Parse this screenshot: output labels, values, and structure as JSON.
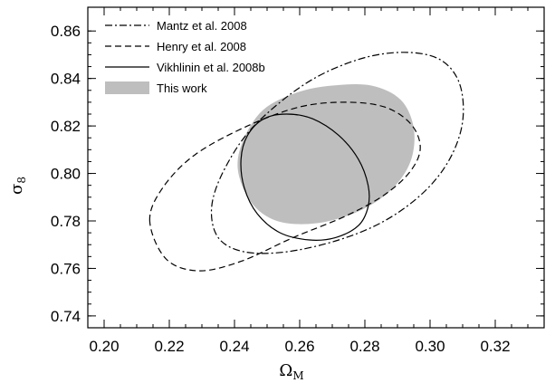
{
  "chart_data": {
    "type": "contour",
    "xlabel": "Ω",
    "xlabel_sub": "M",
    "ylabel": "σ",
    "ylabel_sub": "8",
    "xlim": [
      0.195,
      0.335
    ],
    "ylim": [
      0.735,
      0.87
    ],
    "x_ticks": [
      "0.20",
      "0.22",
      "0.24",
      "0.26",
      "0.28",
      "0.30",
      "0.32"
    ],
    "y_ticks": [
      "0.74",
      "0.76",
      "0.78",
      "0.80",
      "0.82",
      "0.84",
      "0.86"
    ],
    "legend_position": "top-left",
    "series": [
      {
        "name": "Mantz et al. 2008",
        "style": "dash-dot",
        "color": "#000000",
        "points": [
          [
            0.233,
            0.786
          ],
          [
            0.237,
            0.802
          ],
          [
            0.246,
            0.82
          ],
          [
            0.262,
            0.838
          ],
          [
            0.278,
            0.848
          ],
          [
            0.292,
            0.851
          ],
          [
            0.303,
            0.848
          ],
          [
            0.309,
            0.838
          ],
          [
            0.31,
            0.822
          ],
          [
            0.306,
            0.806
          ],
          [
            0.298,
            0.792
          ],
          [
            0.286,
            0.78
          ],
          [
            0.272,
            0.772
          ],
          [
            0.256,
            0.767
          ],
          [
            0.243,
            0.767
          ],
          [
            0.235,
            0.773
          ],
          [
            0.233,
            0.786
          ]
        ]
      },
      {
        "name": "Henry et al. 2008",
        "style": "dashed",
        "color": "#000000",
        "points": [
          [
            0.214,
            0.78
          ],
          [
            0.218,
            0.794
          ],
          [
            0.228,
            0.808
          ],
          [
            0.244,
            0.82
          ],
          [
            0.26,
            0.828
          ],
          [
            0.274,
            0.83
          ],
          [
            0.286,
            0.828
          ],
          [
            0.294,
            0.821
          ],
          [
            0.297,
            0.811
          ],
          [
            0.294,
            0.801
          ],
          [
            0.286,
            0.791
          ],
          [
            0.274,
            0.782
          ],
          [
            0.258,
            0.773
          ],
          [
            0.242,
            0.763
          ],
          [
            0.229,
            0.759
          ],
          [
            0.219,
            0.764
          ],
          [
            0.214,
            0.78
          ]
        ]
      },
      {
        "name": "Vikhlinin et al. 2008b",
        "style": "solid",
        "color": "#000000",
        "points": [
          [
            0.242,
            0.806
          ],
          [
            0.244,
            0.816
          ],
          [
            0.249,
            0.823
          ],
          [
            0.256,
            0.825
          ],
          [
            0.264,
            0.823
          ],
          [
            0.272,
            0.816
          ],
          [
            0.278,
            0.806
          ],
          [
            0.281,
            0.795
          ],
          [
            0.281,
            0.786
          ],
          [
            0.278,
            0.778
          ],
          [
            0.271,
            0.773
          ],
          [
            0.263,
            0.772
          ],
          [
            0.254,
            0.775
          ],
          [
            0.247,
            0.783
          ],
          [
            0.243,
            0.794
          ],
          [
            0.242,
            0.806
          ]
        ]
      },
      {
        "name": "This work",
        "style": "filled",
        "color": "#bebebe",
        "points": [
          [
            0.241,
            0.802
          ],
          [
            0.243,
            0.815
          ],
          [
            0.249,
            0.827
          ],
          [
            0.259,
            0.834
          ],
          [
            0.27,
            0.837
          ],
          [
            0.282,
            0.837
          ],
          [
            0.291,
            0.831
          ],
          [
            0.295,
            0.819
          ],
          [
            0.294,
            0.805
          ],
          [
            0.288,
            0.793
          ],
          [
            0.278,
            0.784
          ],
          [
            0.265,
            0.779
          ],
          [
            0.253,
            0.78
          ],
          [
            0.245,
            0.788
          ],
          [
            0.241,
            0.802
          ]
        ]
      }
    ]
  }
}
